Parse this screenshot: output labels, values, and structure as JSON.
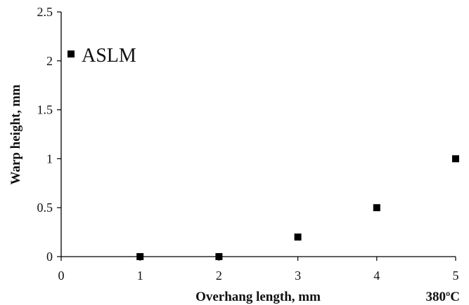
{
  "chart_data": {
    "type": "scatter",
    "title": "",
    "xlabel": "Overhang length, mm",
    "ylabel": "Warp height, mm",
    "xlim": [
      0,
      5
    ],
    "ylim": [
      0,
      2.5
    ],
    "x_ticks": [
      0,
      1,
      2,
      3,
      4,
      5
    ],
    "y_ticks": [
      0,
      0.5,
      1,
      1.5,
      2,
      2.5
    ],
    "x_tick_labels": [
      "0",
      "1",
      "2",
      "3",
      "4",
      "5"
    ],
    "y_tick_labels": [
      "0",
      "0.5",
      "1",
      "1.5",
      "2",
      "2.5"
    ],
    "grid": false,
    "legend_position": "top-left",
    "series": [
      {
        "name": "ASLM",
        "marker": "square",
        "color": "#000000",
        "x": [
          1,
          2,
          3,
          4,
          5
        ],
        "y": [
          0,
          0,
          0.2,
          0.5,
          1.0
        ]
      }
    ],
    "annotation": "380ºC"
  }
}
